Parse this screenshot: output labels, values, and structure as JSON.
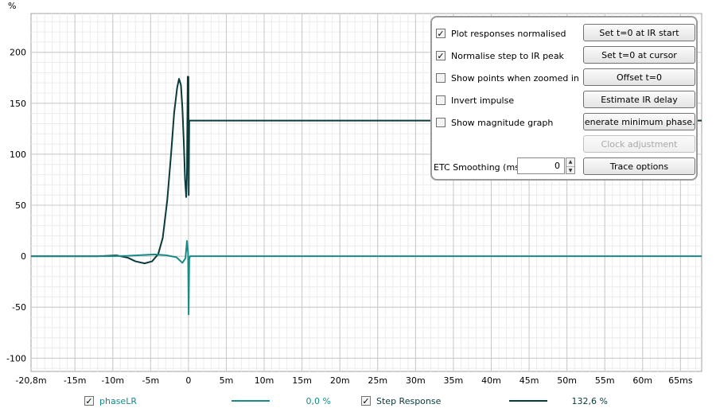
{
  "chart_data": {
    "type": "line",
    "ylabel": "%",
    "xlim": [
      -0.0208,
      0.0678
    ],
    "ylim": [
      -113,
      238
    ],
    "x_ticks": [
      -0.0208,
      -0.015,
      -0.01,
      -0.005,
      0,
      0.005,
      0.01,
      0.015,
      0.02,
      0.025,
      0.03,
      0.035,
      0.04,
      0.045,
      0.05,
      0.055,
      0.06,
      0.065
    ],
    "x_tick_labels": [
      "-20,8m",
      "-15m",
      "-10m",
      "-5m",
      "0",
      "5m",
      "10m",
      "15m",
      "20m",
      "25m",
      "30m",
      "35m",
      "40m",
      "45m",
      "50m",
      "55m",
      "60m",
      "65ms"
    ],
    "y_ticks": [
      -100,
      -50,
      0,
      50,
      100,
      150,
      200
    ],
    "y_tick_labels": [
      "-100",
      "-50",
      "0",
      "50",
      "100",
      "150",
      "200"
    ],
    "grid": true,
    "series": [
      {
        "name": "phaseLR",
        "color": "#1a8a86",
        "points": [
          [
            -0.0208,
            0
          ],
          [
            -0.01,
            0
          ],
          [
            -0.008,
            0.4
          ],
          [
            -0.006,
            1.2
          ],
          [
            -0.0045,
            1.8
          ],
          [
            -0.003,
            1.0
          ],
          [
            -0.0016,
            -1.0
          ],
          [
            -0.0008,
            -6.5
          ],
          [
            -0.0004,
            -2
          ],
          [
            -0.0002,
            15
          ],
          [
            -5e-05,
            3
          ],
          [
            2e-05,
            -57
          ],
          [
            0.0001,
            -3
          ],
          [
            0.0002,
            0
          ],
          [
            0.0678,
            0
          ]
        ]
      },
      {
        "name": "Step Response",
        "color": "#0b3a3a",
        "points": [
          [
            -0.0208,
            0
          ],
          [
            -0.012,
            0
          ],
          [
            -0.0095,
            0.8
          ],
          [
            -0.008,
            -1.5
          ],
          [
            -0.007,
            -5
          ],
          [
            -0.0058,
            -7
          ],
          [
            -0.0048,
            -5
          ],
          [
            -0.004,
            2
          ],
          [
            -0.0034,
            18
          ],
          [
            -0.0028,
            55
          ],
          [
            -0.0023,
            100
          ],
          [
            -0.0019,
            140
          ],
          [
            -0.0015,
            165
          ],
          [
            -0.00125,
            174
          ],
          [
            -0.001,
            168
          ],
          [
            -0.0008,
            145
          ],
          [
            -0.0006,
            108
          ],
          [
            -0.00045,
            75
          ],
          [
            -0.0003,
            58
          ],
          [
            -0.0002,
            80
          ],
          [
            -0.0001,
            176
          ],
          [
            0,
            176
          ],
          [
            3e-05,
            60
          ],
          [
            0.0001,
            133
          ],
          [
            0.0678,
            133
          ]
        ]
      }
    ]
  },
  "options": {
    "checkboxes": [
      {
        "label": "Plot responses normalised",
        "checked": true
      },
      {
        "label": "Normalise step to IR peak",
        "checked": true
      },
      {
        "label": "Show points when zoomed in",
        "checked": false
      },
      {
        "label": "Invert impulse",
        "checked": false
      },
      {
        "label": "Show magnitude graph",
        "checked": false
      }
    ],
    "buttons": [
      {
        "label": "Set t=0 at IR start",
        "enabled": true
      },
      {
        "label": "Set t=0 at cursor",
        "enabled": true
      },
      {
        "label": "Offset t=0",
        "enabled": true
      },
      {
        "label": "Estimate IR delay",
        "enabled": true
      },
      {
        "label": "Generate minimum phase...",
        "enabled": true
      },
      {
        "label": "Clock adjustment",
        "enabled": false
      },
      {
        "label": "Trace options",
        "enabled": true
      }
    ],
    "smoothing_label": "ETC Smoothing (ms):",
    "smoothing_value": "0"
  },
  "legend": [
    {
      "name": "phaseLR",
      "checked": true,
      "color": "#1a8a86",
      "value": "0,0 %"
    },
    {
      "name": "Step Response",
      "checked": true,
      "color": "#0b3a3a",
      "value": "132,6 %"
    }
  ]
}
